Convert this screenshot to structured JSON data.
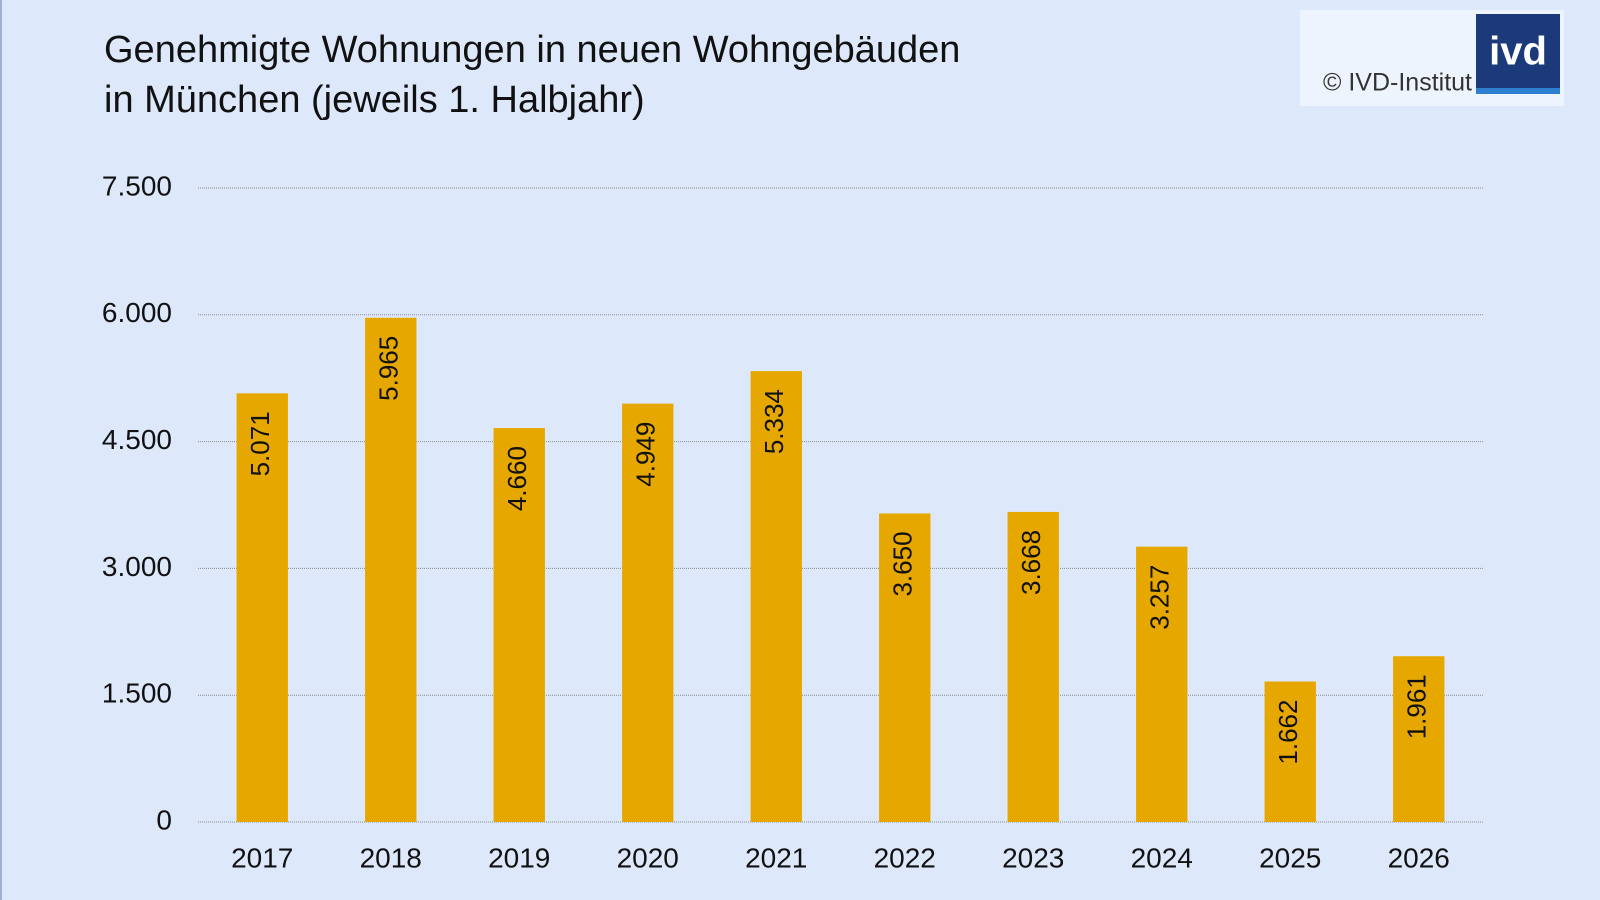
{
  "chart_data": {
    "type": "bar",
    "title": [
      "Genehmigte Wohnungen in neuen Wohngebäuden",
      "in München (jeweils 1. Halbjahr)"
    ],
    "source": "© IVD-Institut",
    "logo": "ivd",
    "categories": [
      "2017",
      "2018",
      "2019",
      "2020",
      "2021",
      "2022",
      "2023",
      "2024",
      "2025",
      "2026"
    ],
    "values": [
      5071,
      5965,
      4660,
      4949,
      5334,
      3650,
      3668,
      3257,
      1662,
      1961
    ],
    "value_labels": [
      "5.071",
      "5.965",
      "4.660",
      "4.949",
      "5.334",
      "3.650",
      "3.668",
      "3.257",
      "1.662",
      "1.961"
    ],
    "color": "#e6a800",
    "ylim": [
      0,
      7500
    ],
    "yticks": [
      0,
      {
        "value": 1500,
        "label": "1.500"
      },
      {
        "value": 3000,
        "label": "3.000"
      },
      {
        "value": 4500,
        "label": "4.500"
      },
      {
        "value": 6000,
        "label": "6.000"
      },
      {
        "value": 7500,
        "label": "7.500"
      }
    ],
    "grid": true
  }
}
